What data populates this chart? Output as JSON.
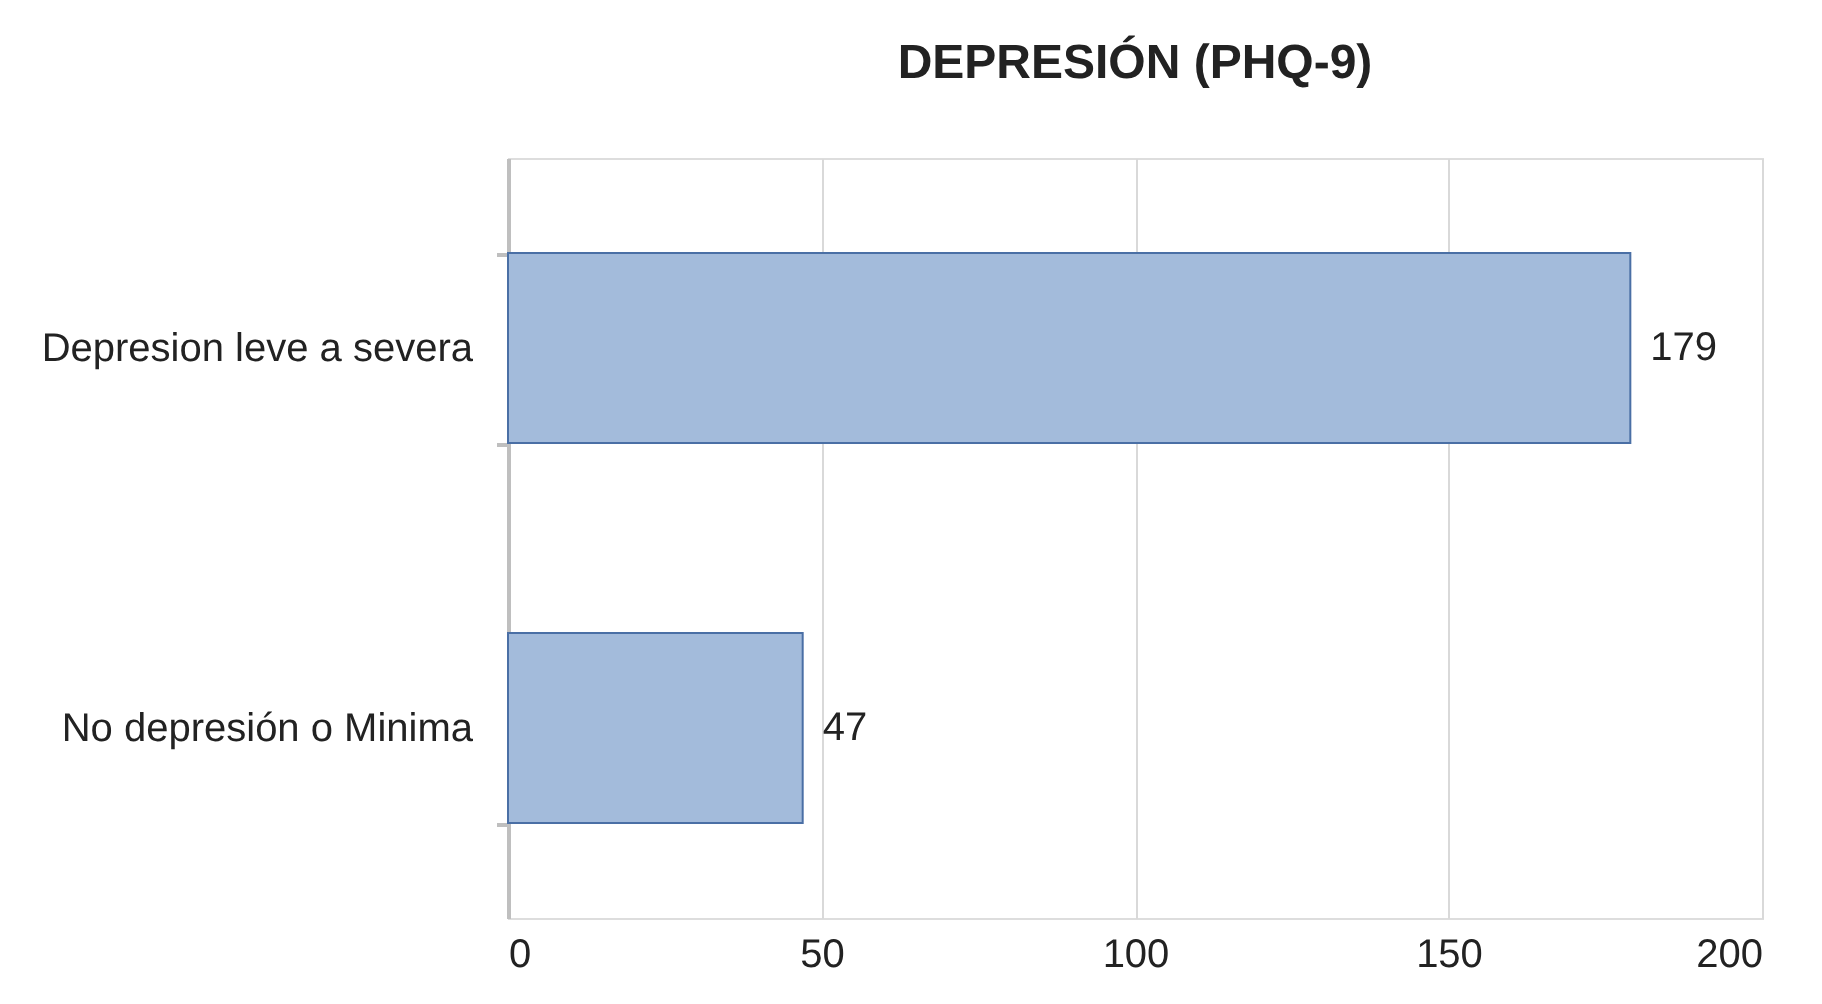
{
  "chart_data": {
    "type": "bar",
    "orientation": "horizontal",
    "title": "DEPRESIÓN (PHQ-9)",
    "categories": [
      "Depresion leve a severa",
      "No depresión o Minima"
    ],
    "values": [
      179,
      47
    ],
    "color": "#a3bbdb",
    "xlim": [
      0,
      200
    ],
    "xticks": [
      0,
      50,
      100,
      150,
      200
    ],
    "grid": "x",
    "data_labels": true
  }
}
